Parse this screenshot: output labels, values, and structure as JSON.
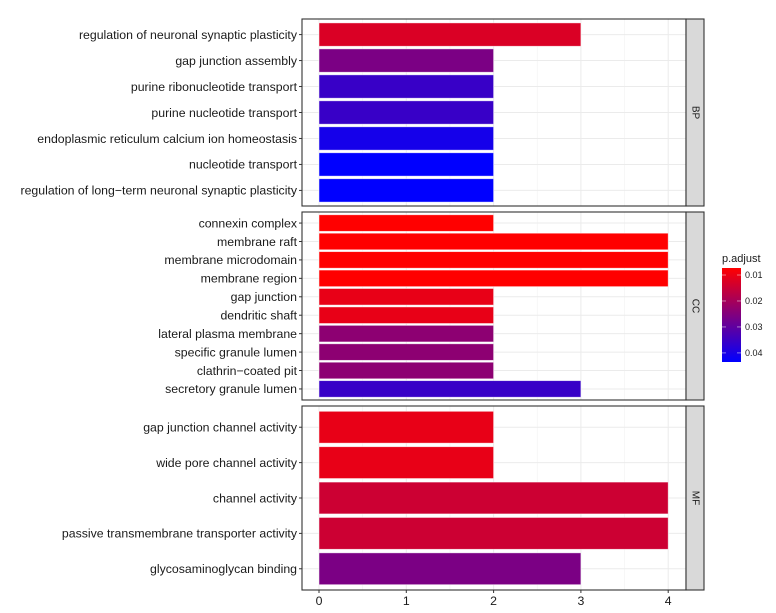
{
  "chart_data": {
    "type": "bar",
    "orientation": "horizontal",
    "faceted_by": "ontology",
    "xlabel": "",
    "ylabel": "",
    "xlim": [
      -0.2,
      4.2
    ],
    "x_ticks": [
      "0",
      "1",
      "2",
      "3",
      "4"
    ],
    "grid": true,
    "color_scale": {
      "title": "p.adjust",
      "low_color": "#ff0000",
      "high_color": "#0000ff",
      "range": [
        0.0073,
        0.0435
      ],
      "tick_labels": [
        "0.01",
        "0.02",
        "0.03",
        "0.04"
      ],
      "legend_position": "right"
    },
    "facets": [
      {
        "name": "BP",
        "categories": [
          "regulation of neuronal synaptic plasticity",
          "gap junction assembly",
          "purine ribonucleotide transport",
          "purine nucleotide transport",
          "endoplasmic reticulum calcium ion homeostasis",
          "nucleotide transport",
          "regulation of long−term neuronal synaptic plasticity"
        ],
        "values": [
          3,
          2,
          2,
          2,
          2,
          2,
          2
        ],
        "p_adjust": [
          0.0125,
          0.026,
          0.0355,
          0.0355,
          0.0405,
          0.0435,
          0.0435
        ]
      },
      {
        "name": "CC",
        "categories": [
          "connexin complex",
          "membrane raft",
          "membrane microdomain",
          "membrane region",
          "gap junction",
          "dendritic shaft",
          "lateral plasma membrane",
          "specific granule lumen",
          "clathrin−coated pit",
          "secretory granule lumen"
        ],
        "values": [
          2,
          4,
          4,
          4,
          2,
          2,
          2,
          2,
          2,
          3
        ],
        "p_adjust": [
          0.0073,
          0.0073,
          0.0073,
          0.0073,
          0.0105,
          0.0105,
          0.0235,
          0.0235,
          0.0235,
          0.0355
        ]
      },
      {
        "name": "MF",
        "categories": [
          "gap junction channel activity",
          "wide pore channel activity",
          "channel activity",
          "passive transmembrane transporter activity",
          "glycosaminoglycan binding"
        ],
        "values": [
          2,
          2,
          4,
          4,
          3
        ],
        "p_adjust": [
          0.0105,
          0.0105,
          0.0145,
          0.0145,
          0.026
        ]
      }
    ]
  }
}
